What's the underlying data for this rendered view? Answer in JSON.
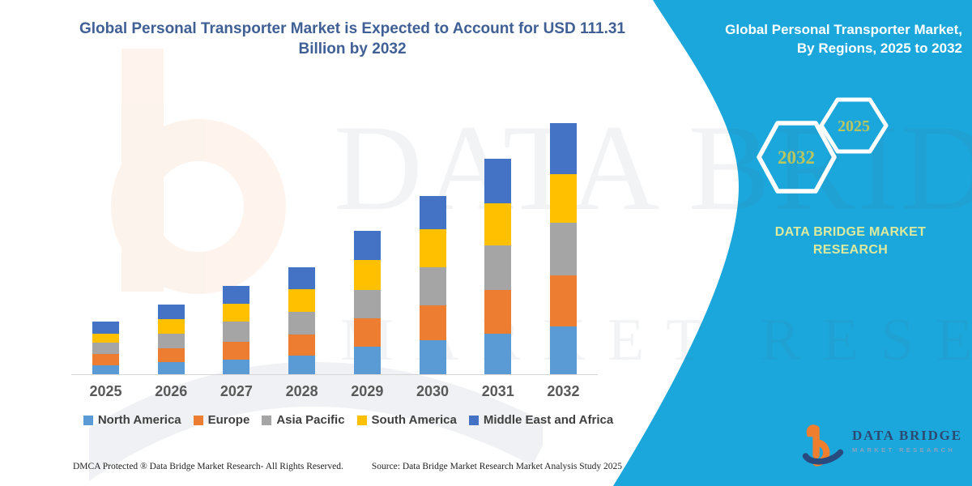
{
  "header": {
    "title": "Global Personal Transporter Market is Expected to Account for USD 111.31 Billion by 2032"
  },
  "chart_data": {
    "type": "bar",
    "stacked": true,
    "title": "Global Personal Transporter Market is Expected to Account for USD 111.31 Billion by 2032",
    "unit": "USD Billion",
    "categories": [
      "2025",
      "2026",
      "2027",
      "2028",
      "2029",
      "2030",
      "2031",
      "2032"
    ],
    "series": [
      {
        "name": "North America",
        "color": "#5b9bd5",
        "values": [
          3.9,
          5.4,
          6.6,
          8.1,
          12.1,
          15.0,
          17.9,
          21.1
        ]
      },
      {
        "name": "Europe",
        "color": "#ed7d31",
        "values": [
          5.2,
          6.0,
          7.8,
          9.4,
          12.6,
          15.5,
          19.5,
          22.7
        ]
      },
      {
        "name": "Asia Pacific",
        "color": "#a5a5a5",
        "values": [
          4.8,
          6.6,
          9.0,
          10.2,
          12.6,
          16.9,
          19.8,
          23.4
        ]
      },
      {
        "name": "South America",
        "color": "#ffc000",
        "values": [
          4.2,
          6.6,
          7.8,
          10.0,
          13.4,
          16.9,
          18.4,
          21.6
        ]
      },
      {
        "name": "Middle East and Africa",
        "color": "#4472c4",
        "values": [
          5.4,
          6.3,
          8.0,
          9.6,
          12.9,
          14.8,
          19.9,
          22.5
        ]
      }
    ],
    "totals_note": "2032 total = 111.31 USD Billion per title",
    "ylim": [
      0,
      115
    ],
    "y_axis_visible": false,
    "grid": false,
    "legend_position": "bottom"
  },
  "side_panel": {
    "color": "#1ba7dc",
    "title_line1": "Global Personal Transporter Market,",
    "title_line2": "By Regions, 2025 to 2032",
    "hexagons": [
      {
        "label": "2032"
      },
      {
        "label": "2025"
      }
    ],
    "brand_line1": "DATA BRIDGE MARKET",
    "brand_line2": "RESEARCH"
  },
  "footer": {
    "left": "DMCA Protected ® Data Bridge Market Research-  All Rights Reserved.",
    "right": "Source: Data Bridge Market Research  Market Analysis Study 2025"
  },
  "logo": {
    "name": "DATA BRIDGE",
    "subtitle": "MARKET RESEARCH"
  },
  "watermarks": {
    "line1": "DATA BRIDGE",
    "line2": "MARKET RESEARCH"
  },
  "colors": {
    "title_text": "#3f5f95",
    "axis_label": "#595959",
    "legend_text": "#404040",
    "hexagon_year_text": "#b9c55f",
    "panel_brand_text": "#dcea9e",
    "logo_orange": "#ef7f2e",
    "logo_navy": "#2c4a71"
  }
}
